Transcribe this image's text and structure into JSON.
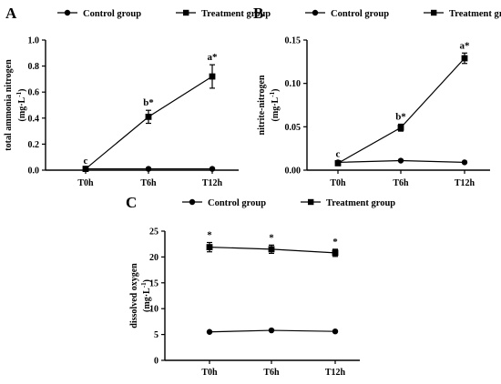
{
  "chart_data": [
    {
      "id": "A",
      "type": "line",
      "panel_label": "A",
      "categories": [
        "T0h",
        "T6h",
        "T12h"
      ],
      "ylabel": "total ammonia nitrogen",
      "ylabel_unit": "(mg·L",
      "ylabel_unit_exp": "-1",
      "ylabel_unit_close": ")",
      "ylim": [
        0,
        1.0
      ],
      "yticks": [
        "0.0",
        "0.2",
        "0.4",
        "0.6",
        "0.8",
        "1.0"
      ],
      "ytick_values": [
        0,
        0.2,
        0.4,
        0.6,
        0.8,
        1.0
      ],
      "series": [
        {
          "name": "Control group",
          "marker": "circle",
          "values": [
            0.01,
            0.01,
            0.01
          ],
          "errors": [
            0,
            0,
            0
          ]
        },
        {
          "name": "Treatment group",
          "marker": "square",
          "values": [
            0.01,
            0.41,
            0.72
          ],
          "errors": [
            0.005,
            0.05,
            0.09
          ]
        }
      ],
      "annotations": [
        "c",
        "b*",
        "a*"
      ]
    },
    {
      "id": "B",
      "type": "line",
      "panel_label": "B",
      "categories": [
        "T0h",
        "T6h",
        "T12h"
      ],
      "ylabel": "nitrite-nitrogen",
      "ylabel_unit": "(mg·L",
      "ylabel_unit_exp": "-1",
      "ylabel_unit_close": ")",
      "ylim": [
        0,
        0.15
      ],
      "yticks": [
        "0.00",
        "0.05",
        "0.10",
        "0.15"
      ],
      "ytick_values": [
        0,
        0.05,
        0.1,
        0.15
      ],
      "series": [
        {
          "name": "Control group",
          "marker": "circle",
          "values": [
            0.009,
            0.011,
            0.009
          ],
          "errors": [
            0,
            0,
            0
          ]
        },
        {
          "name": "Treatment group",
          "marker": "square",
          "values": [
            0.008,
            0.049,
            0.129
          ],
          "errors": [
            0.002,
            0.004,
            0.006
          ]
        }
      ],
      "annotations": [
        "c",
        "b*",
        "a*"
      ]
    },
    {
      "id": "C",
      "type": "line",
      "panel_label": "C",
      "categories": [
        "T0h",
        "T6h",
        "T12h"
      ],
      "ylabel": "dissolved oxygen",
      "ylabel_unit": "(mg·L",
      "ylabel_unit_exp": "-1",
      "ylabel_unit_close": ")",
      "ylim": [
        0,
        25
      ],
      "yticks": [
        "0",
        "5",
        "10",
        "15",
        "20",
        "25"
      ],
      "ytick_values": [
        0,
        5,
        10,
        15,
        20,
        25
      ],
      "series": [
        {
          "name": "Control group",
          "marker": "circle",
          "values": [
            5.5,
            5.8,
            5.6
          ],
          "errors": [
            0,
            0,
            0
          ]
        },
        {
          "name": "Treatment group",
          "marker": "square",
          "values": [
            21.9,
            21.5,
            20.8
          ],
          "errors": [
            0.9,
            0.8,
            0.7
          ]
        }
      ],
      "annotations": [
        "*",
        "*",
        "*"
      ]
    }
  ]
}
